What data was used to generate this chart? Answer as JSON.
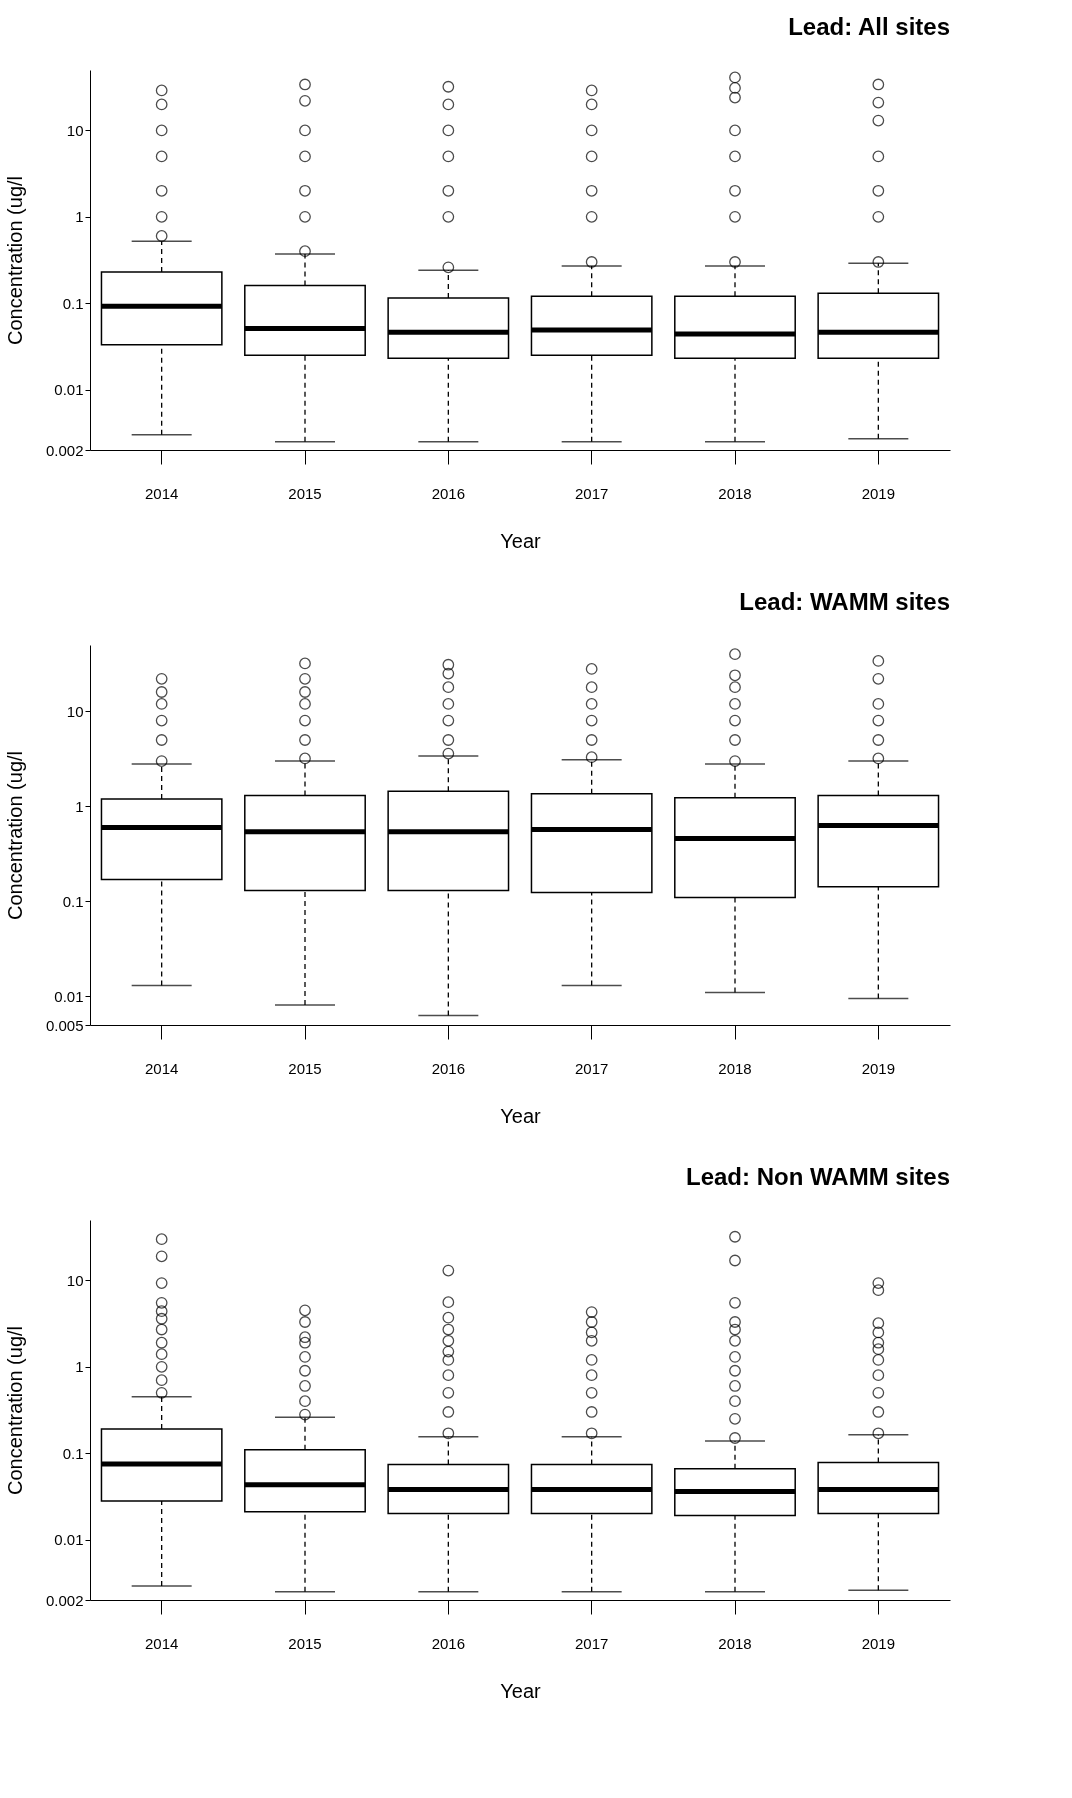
{
  "chart_data": [
    {
      "type": "box",
      "title": "Lead: All sites",
      "xlabel": "Year",
      "ylabel": "Concentration (ug/l",
      "log": true,
      "grid": false,
      "categories": [
        "2014",
        "2015",
        "2016",
        "2017",
        "2018",
        "2019"
      ],
      "ylim": [
        0.002,
        50
      ],
      "yticks": [
        10,
        1,
        0.1,
        0.01,
        0.002
      ],
      "boxes": [
        {
          "low": 0.003,
          "q1": 0.033,
          "median": 0.092,
          "q3": 0.23,
          "high": 0.52,
          "outliers": [
            0.6,
            1,
            2,
            5,
            10,
            20,
            29
          ]
        },
        {
          "low": 0.0025,
          "q1": 0.025,
          "median": 0.051,
          "q3": 0.16,
          "high": 0.37,
          "outliers": [
            0.4,
            1,
            2,
            5,
            10,
            22,
            34
          ]
        },
        {
          "low": 0.0025,
          "q1": 0.023,
          "median": 0.046,
          "q3": 0.115,
          "high": 0.24,
          "outliers": [
            0.26,
            1,
            2,
            5,
            10,
            20,
            32
          ]
        },
        {
          "low": 0.0025,
          "q1": 0.025,
          "median": 0.049,
          "q3": 0.12,
          "high": 0.27,
          "outliers": [
            0.3,
            1,
            2,
            5,
            10,
            20,
            29
          ]
        },
        {
          "low": 0.0025,
          "q1": 0.023,
          "median": 0.044,
          "q3": 0.12,
          "high": 0.27,
          "outliers": [
            0.3,
            1,
            2,
            5,
            10,
            24,
            31,
            41
          ]
        },
        {
          "low": 0.0027,
          "q1": 0.023,
          "median": 0.046,
          "q3": 0.13,
          "high": 0.29,
          "outliers": [
            0.3,
            1,
            2,
            5,
            13,
            21,
            34
          ]
        }
      ]
    },
    {
      "type": "box",
      "title": "Lead: WAMM sites",
      "xlabel": "Year",
      "ylabel": "Concentration (ug/l",
      "log": true,
      "grid": false,
      "categories": [
        "2014",
        "2015",
        "2016",
        "2017",
        "2018",
        "2019"
      ],
      "ylim": [
        0.005,
        50
      ],
      "yticks": [
        10,
        1,
        0.1,
        0.01,
        0.005
      ],
      "boxes": [
        {
          "low": 0.013,
          "q1": 0.17,
          "median": 0.6,
          "q3": 1.2,
          "high": 2.8,
          "outliers": [
            3,
            5,
            8,
            12,
            16,
            22
          ]
        },
        {
          "low": 0.0081,
          "q1": 0.13,
          "median": 0.54,
          "q3": 1.3,
          "high": 3.0,
          "outliers": [
            3.2,
            5,
            8,
            12,
            16,
            22,
            32
          ]
        },
        {
          "low": 0.0063,
          "q1": 0.13,
          "median": 0.54,
          "q3": 1.44,
          "high": 3.4,
          "outliers": [
            3.6,
            5,
            8,
            12,
            18,
            25,
            31
          ]
        },
        {
          "low": 0.013,
          "q1": 0.124,
          "median": 0.57,
          "q3": 1.36,
          "high": 3.1,
          "outliers": [
            3.3,
            5,
            8,
            12,
            18,
            28
          ]
        },
        {
          "low": 0.011,
          "q1": 0.11,
          "median": 0.46,
          "q3": 1.23,
          "high": 2.8,
          "outliers": [
            3,
            5,
            8,
            12,
            18,
            24,
            40
          ]
        },
        {
          "low": 0.0095,
          "q1": 0.143,
          "median": 0.63,
          "q3": 1.3,
          "high": 3.0,
          "outliers": [
            3.2,
            5,
            8,
            12,
            22,
            34
          ]
        }
      ]
    },
    {
      "type": "box",
      "title": "Lead: Non WAMM sites",
      "xlabel": "Year",
      "ylabel": "Concentration (ug/l",
      "log": true,
      "grid": false,
      "categories": [
        "2014",
        "2015",
        "2016",
        "2017",
        "2018",
        "2019"
      ],
      "ylim": [
        0.002,
        50
      ],
      "yticks": [
        10,
        1,
        0.1,
        0.01,
        0.002
      ],
      "boxes": [
        {
          "low": 0.0029,
          "q1": 0.028,
          "median": 0.075,
          "q3": 0.19,
          "high": 0.45,
          "outliers": [
            0.5,
            0.7,
            1,
            1.4,
            1.9,
            2.7,
            3.6,
            4.4,
            5.5,
            9.3,
            19,
            30
          ]
        },
        {
          "low": 0.0025,
          "q1": 0.021,
          "median": 0.043,
          "q3": 0.11,
          "high": 0.26,
          "outliers": [
            0.28,
            0.4,
            0.6,
            0.9,
            1.3,
            1.9,
            2.2,
            3.3,
            4.5
          ]
        },
        {
          "low": 0.0025,
          "q1": 0.02,
          "median": 0.038,
          "q3": 0.074,
          "high": 0.155,
          "outliers": [
            0.17,
            0.3,
            0.5,
            0.8,
            1.2,
            1.5,
            2,
            2.7,
            3.7,
            5.6,
            13
          ]
        },
        {
          "low": 0.0025,
          "q1": 0.02,
          "median": 0.038,
          "q3": 0.074,
          "high": 0.155,
          "outliers": [
            0.17,
            0.3,
            0.5,
            0.8,
            1.2,
            2,
            2.5,
            3.3,
            4.3
          ]
        },
        {
          "low": 0.0025,
          "q1": 0.019,
          "median": 0.036,
          "q3": 0.066,
          "high": 0.138,
          "outliers": [
            0.15,
            0.25,
            0.4,
            0.6,
            0.9,
            1.3,
            2,
            2.7,
            3.3,
            5.5,
            17,
            32
          ]
        },
        {
          "low": 0.0026,
          "q1": 0.02,
          "median": 0.038,
          "q3": 0.078,
          "high": 0.163,
          "outliers": [
            0.17,
            0.3,
            0.5,
            0.8,
            1.2,
            1.6,
            1.9,
            2.5,
            3.2,
            7.7,
            9.3
          ]
        }
      ]
    }
  ]
}
